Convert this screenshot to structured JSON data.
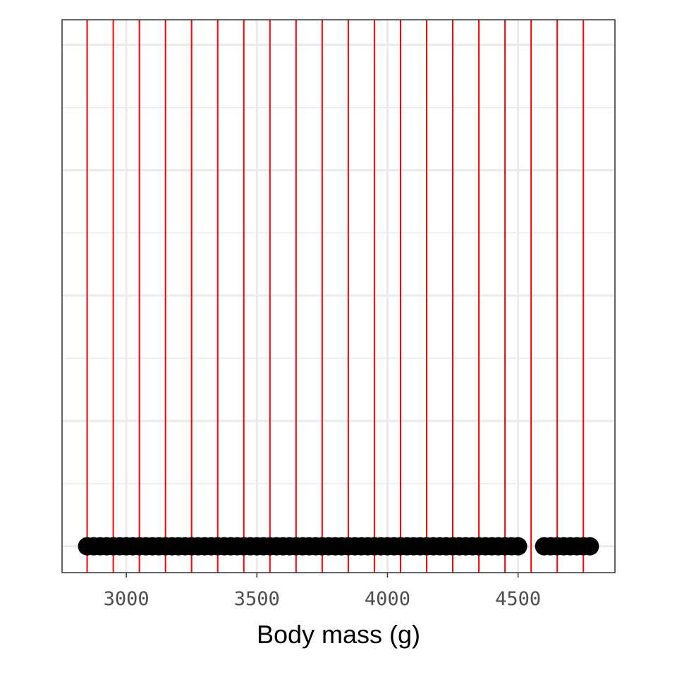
{
  "chart_data": {
    "type": "scatter",
    "x_label": "Body mass (g)",
    "x": [
      2850,
      2875,
      2900,
      2925,
      2950,
      2975,
      3000,
      3025,
      3050,
      3075,
      3100,
      3125,
      3150,
      3175,
      3200,
      3225,
      3250,
      3275,
      3300,
      3325,
      3350,
      3375,
      3400,
      3425,
      3450,
      3475,
      3500,
      3525,
      3550,
      3575,
      3600,
      3625,
      3650,
      3675,
      3700,
      3725,
      3750,
      3775,
      3800,
      3825,
      3850,
      3875,
      3900,
      3925,
      3950,
      3975,
      4000,
      4025,
      4050,
      4075,
      4100,
      4125,
      4150,
      4175,
      4200,
      4225,
      4250,
      4275,
      4300,
      4325,
      4350,
      4375,
      4400,
      4425,
      4450,
      4475,
      4500,
      4600,
      4625,
      4650,
      4675,
      4700,
      4725,
      4750,
      4775
    ],
    "y": [
      0,
      0,
      0,
      0,
      0,
      0,
      0,
      0,
      0,
      0,
      0,
      0,
      0,
      0,
      0,
      0,
      0,
      0,
      0,
      0,
      0,
      0,
      0,
      0,
      0,
      0,
      0,
      0,
      0,
      0,
      0,
      0,
      0,
      0,
      0,
      0,
      0,
      0,
      0,
      0,
      0,
      0,
      0,
      0,
      0,
      0,
      0,
      0,
      0,
      0,
      0,
      0,
      0,
      0,
      0,
      0,
      0,
      0,
      0,
      0,
      0,
      0,
      0,
      0,
      0,
      0,
      0,
      0,
      0,
      0,
      0,
      0,
      0,
      0,
      0
    ],
    "color": "#000000",
    "vlines": [
      2850,
      2950,
      3050,
      3150,
      3250,
      3350,
      3450,
      3550,
      3650,
      3750,
      3850,
      3950,
      4050,
      4150,
      4250,
      4350,
      4450,
      4550,
      4650,
      4750
    ],
    "vline_color": "#ff0000",
    "xlim": [
      2754,
      4871
    ],
    "xticks": [
      3000,
      3500,
      4000,
      4500
    ],
    "xminorticks": [
      3250,
      3750,
      4250,
      4750
    ],
    "ylim": [
      -0.21,
      4.2
    ],
    "yticks": [
      0,
      1,
      2,
      3,
      4
    ],
    "yminorticks": [
      0.5,
      1.5,
      2.5,
      3.5
    ],
    "grid": true
  }
}
